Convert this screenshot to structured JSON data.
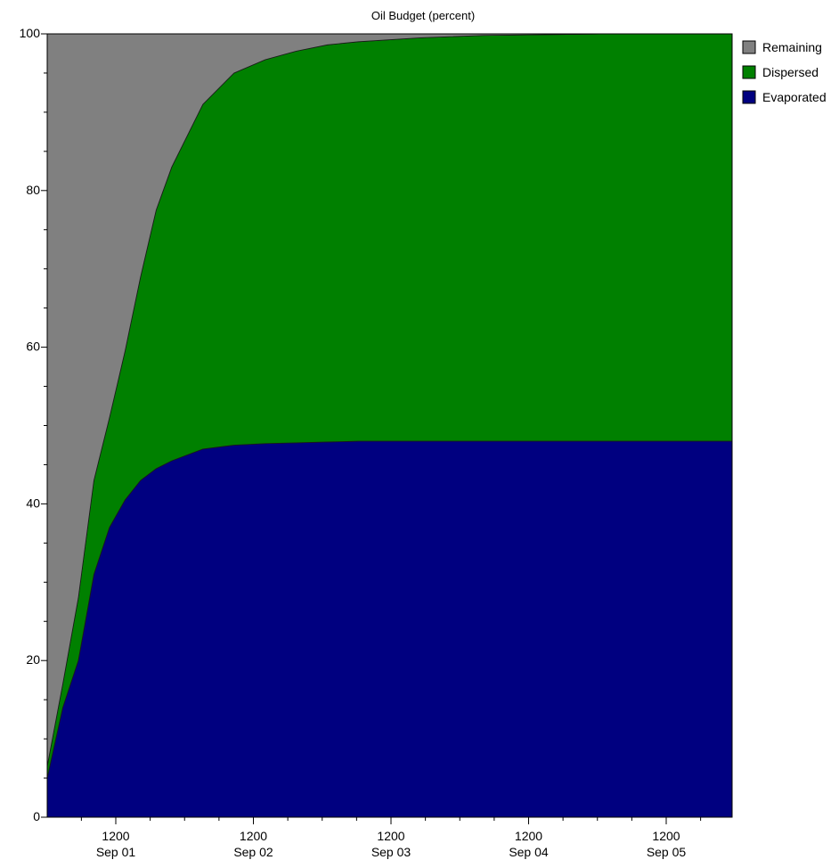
{
  "chart_data": {
    "type": "area",
    "stacked": true,
    "title": "Oil Budget (percent)",
    "xlabel": "",
    "ylabel": "",
    "ylim": [
      0,
      100
    ],
    "yticks": [
      0,
      20,
      40,
      60,
      80,
      100
    ],
    "xlim": [
      "Aug 31 00:00",
      "Sep 05 12:00"
    ],
    "xticks": [
      {
        "top": "1200",
        "bottom": "Sep 01"
      },
      {
        "top": "1200",
        "bottom": "Sep 02"
      },
      {
        "top": "1200",
        "bottom": "Sep 03"
      },
      {
        "top": "1200",
        "bottom": "Sep 04"
      },
      {
        "top": "1200",
        "bottom": "Sep 05"
      }
    ],
    "x_hours": [
      0,
      3,
      6,
      9,
      12,
      15,
      18,
      21,
      24,
      30,
      36,
      42,
      48,
      54,
      60,
      72,
      84,
      96,
      108,
      120,
      132
    ],
    "series": [
      {
        "name": "Evaporated",
        "color": "#000080",
        "values": [
          5,
          14,
          20,
          31,
          37,
          40.5,
          43,
          44.5,
          45.5,
          47,
          47.5,
          47.7,
          47.8,
          47.9,
          48,
          48,
          48,
          48,
          48,
          48,
          48
        ]
      },
      {
        "name": "Dispersed",
        "color": "#008000",
        "values": [
          1.5,
          3,
          8,
          12,
          14,
          19,
          26,
          33,
          37.5,
          44,
          47.5,
          49,
          50,
          50.7,
          51,
          51.5,
          51.8,
          51.9,
          52,
          52,
          52
        ]
      },
      {
        "name": "Remaining",
        "color": "#808080",
        "values": [
          93.5,
          83,
          72,
          57,
          49,
          40.5,
          31,
          22.5,
          17,
          9,
          5,
          3.3,
          2.2,
          1.4,
          1,
          0.5,
          0.2,
          0.1,
          0,
          0,
          0
        ]
      }
    ],
    "legend": {
      "position": "top-right",
      "entries": [
        "Remaining",
        "Dispersed",
        "Evaporated"
      ]
    },
    "grid": false
  }
}
